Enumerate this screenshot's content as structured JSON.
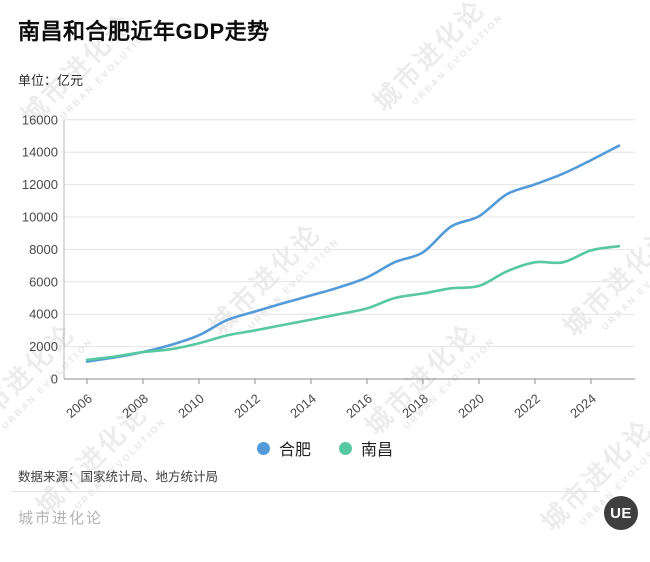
{
  "header": {
    "title": "南昌和合肥近年GDP走势",
    "unit_label": "单位：亿元"
  },
  "chart_data": {
    "type": "line",
    "x": [
      2006,
      2007,
      2008,
      2009,
      2010,
      2011,
      2012,
      2013,
      2014,
      2015,
      2016,
      2017,
      2018,
      2019,
      2020,
      2021,
      2022,
      2023,
      2024,
      2025
    ],
    "series": [
      {
        "name": "合肥",
        "color": "#539ad9",
        "values": [
          1074,
          1334,
          1665,
          2102,
          2702,
          3637,
          4164,
          4672,
          5158,
          5660,
          6274,
          7213,
          7823,
          9409,
          10046,
          11413,
          12013,
          12673,
          13508,
          14400
        ]
      },
      {
        "name": "南昌",
        "color": "#58c8a0",
        "values": [
          1185,
          1390,
          1660,
          1838,
          2207,
          2689,
          3001,
          3336,
          3668,
          4000,
          4355,
          5003,
          5275,
          5596,
          5746,
          6651,
          7204,
          7204,
          7940,
          8200
        ]
      }
    ],
    "title": "南昌和合肥近年GDP走势",
    "ylabel": "亿元",
    "ylim": [
      0,
      16000
    ],
    "ytick_step": 2000,
    "xticks": [
      2006,
      2008,
      2010,
      2012,
      2014,
      2016,
      2018,
      2020,
      2022,
      2024
    ],
    "grid": true,
    "legend_position": "bottom"
  },
  "legend": {
    "items": [
      {
        "label": "合肥",
        "color": "#539ad9"
      },
      {
        "label": "南昌",
        "color": "#58c8a0"
      }
    ]
  },
  "footer": {
    "source": "数据来源：国家统计局、地方统计局",
    "brand": "城市进化论",
    "logo_text": "UE"
  },
  "watermark": {
    "text": "城市进化论",
    "subtext": "URBAN EVOLUTION"
  }
}
